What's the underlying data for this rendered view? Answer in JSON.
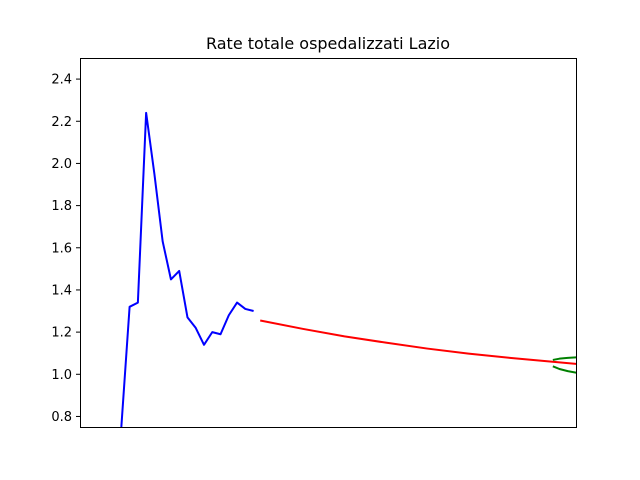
{
  "chart_data": {
    "type": "line",
    "title": "Rate totale ospedalizzati Lazio",
    "xlabel": "",
    "ylabel": "",
    "ylim": [
      0.75,
      2.5
    ],
    "yticks": [
      "0.8",
      "1.0",
      "1.2",
      "1.4",
      "1.6",
      "1.8",
      "2.0",
      "2.2",
      "2.4"
    ],
    "xlim": [
      0,
      60
    ],
    "grid": false,
    "series": [
      {
        "color": "#0000ff",
        "x": [
          5,
          6,
          7,
          8,
          9,
          10,
          11,
          12,
          13,
          14,
          15,
          16,
          17,
          18,
          19,
          20,
          21
        ],
        "y": [
          0.75,
          1.32,
          1.34,
          2.24,
          1.95,
          1.63,
          1.45,
          1.49,
          1.27,
          1.22,
          1.14,
          1.2,
          1.19,
          1.28,
          1.34,
          1.31,
          1.3
        ]
      },
      {
        "color": "#ff0000",
        "x": [
          21.8,
          27,
          32,
          37,
          42,
          47,
          52,
          57,
          61.2
        ],
        "y": [
          1.255,
          1.215,
          1.18,
          1.15,
          1.122,
          1.098,
          1.078,
          1.06,
          1.045
        ]
      },
      {
        "color": "#008000",
        "x": [
          57.2,
          58,
          59,
          60,
          61.2
        ],
        "y": [
          1.068,
          1.074,
          1.078,
          1.08,
          1.081
        ]
      },
      {
        "color": "#008000",
        "x": [
          57.2,
          58,
          59,
          60,
          61.2
        ],
        "y": [
          1.038,
          1.025,
          1.015,
          1.008,
          1.001
        ]
      }
    ]
  }
}
